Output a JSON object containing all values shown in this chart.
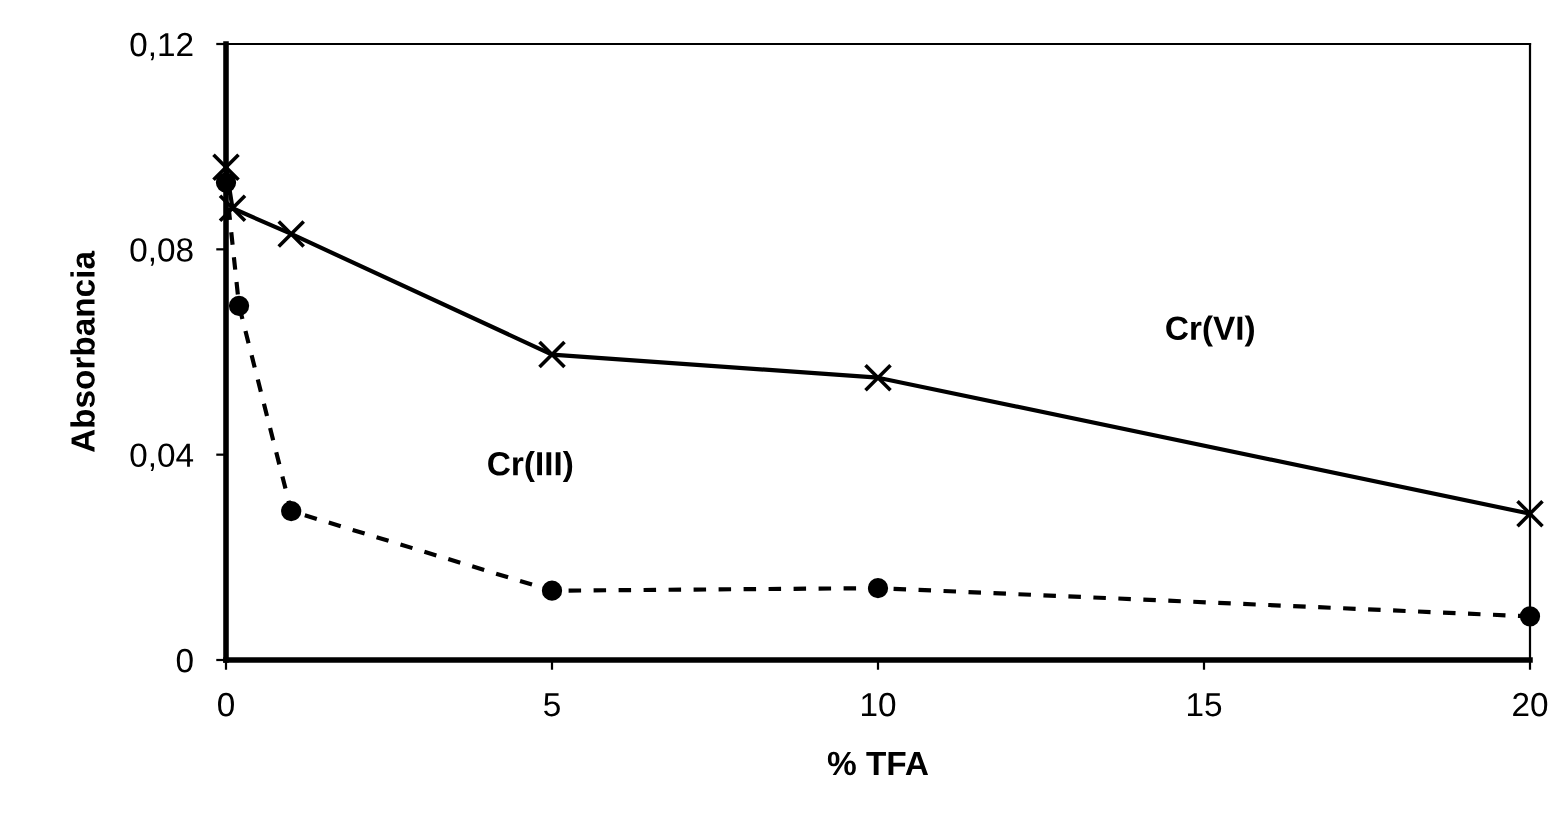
{
  "chart_data": {
    "type": "line",
    "xlabel": "% TFA",
    "ylabel": "Absorbancia",
    "xlim": [
      0,
      20
    ],
    "xticks": [
      0,
      5,
      10,
      15,
      20
    ],
    "ylim": [
      0,
      0.12
    ],
    "yticks": [
      {
        "value": 0,
        "label": "0"
      },
      {
        "value": 0.04,
        "label": "0,04"
      },
      {
        "value": 0.08,
        "label": "0,08"
      },
      {
        "value": 0.12,
        "label": "0,12"
      }
    ],
    "grid": false,
    "legend": false,
    "series": [
      {
        "name": "Cr(VI)",
        "color": "#000000",
        "marker": "cross",
        "line_style": "solid",
        "x": [
          0,
          0.1,
          1,
          5,
          10,
          20
        ],
        "values": [
          0.096,
          0.088,
          0.083,
          0.0595,
          0.055,
          0.0285
        ]
      },
      {
        "name": "Cr(III)",
        "color": "#000000",
        "marker": "circle",
        "line_style": "dashed",
        "x": [
          0,
          0.2,
          1,
          5,
          10,
          20
        ],
        "values": [
          0.093,
          0.069,
          0.029,
          0.0135,
          0.014,
          0.0085
        ]
      }
    ]
  }
}
